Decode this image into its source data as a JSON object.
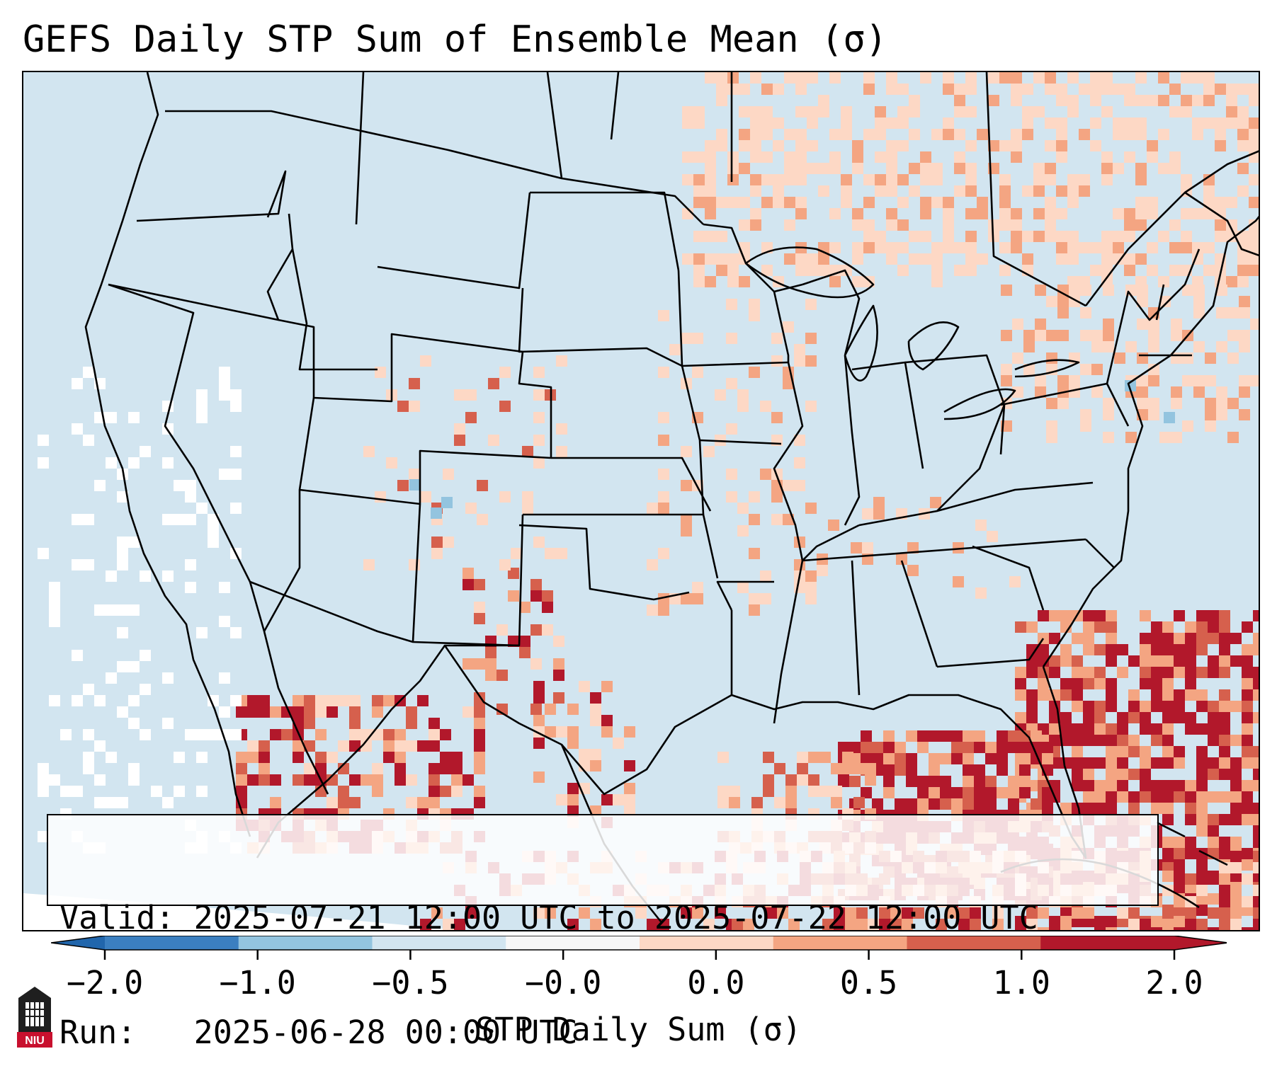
{
  "title": "GEFS Daily STP Sum of Ensemble Mean (σ)",
  "info": {
    "valid_line": "Valid: 2025-07-21 12:00 UTC to 2025-07-22 12:00 UTC",
    "run_line": "Run:   2025-06-28 00:00 UTC"
  },
  "colorbar": {
    "label": "STP Daily Sum (σ)",
    "ticks": [
      "−2.0",
      "−1.0",
      "−0.5",
      "−0.0",
      "0.0",
      "0.5",
      "1.0",
      "2.0"
    ],
    "colors": [
      "#3b7fc0",
      "#93c4df",
      "#d2e5f0",
      "#f7f7f7",
      "#fdd8c5",
      "#f4a582",
      "#d6604d",
      "#b2182b"
    ],
    "extend_low_color": "#2166ac",
    "extend_high_color": "#b2182b"
  },
  "map": {
    "background_color": "#d2e5f0",
    "positive_light": "#fdd8c5",
    "positive_mid": "#f4a582",
    "positive_high": "#d6604d",
    "positive_extreme": "#b2182b",
    "neutral_color": "#ffffff",
    "negative_light": "#93c4df"
  },
  "logo": {
    "text": "NIU"
  }
}
